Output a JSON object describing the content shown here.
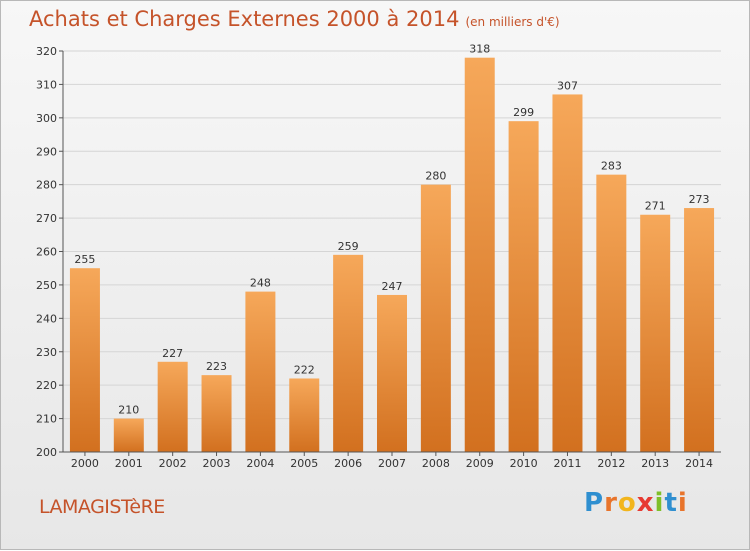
{
  "title": "Achats et Charges Externes 2000 à 2014",
  "subtitle": "(en milliers d'€)",
  "town": "LAMAGISTèRE",
  "brand": {
    "letters": [
      "P",
      "r",
      "o",
      "x",
      "i",
      "t",
      "i"
    ],
    "colors": [
      "#2f8fd0",
      "#e8742b",
      "#f2b51d",
      "#e73a32",
      "#7fbf2a",
      "#2f8fd0",
      "#e8742b"
    ]
  },
  "colors": {
    "title": "#c5532a",
    "bar_top": "#f6a85a",
    "bar_bottom": "#d2701f",
    "grid": "#d5d5d5"
  },
  "chart_data": {
    "type": "bar",
    "title": "Achats et Charges Externes 2000 à 2014",
    "subtitle": "(en milliers d'€)",
    "xlabel": "",
    "ylabel": "",
    "ylim": [
      200,
      320
    ],
    "yticks": [
      200,
      210,
      220,
      230,
      240,
      250,
      260,
      270,
      280,
      290,
      300,
      310,
      320
    ],
    "grid": true,
    "categories": [
      "2000",
      "2001",
      "2002",
      "2003",
      "2004",
      "2005",
      "2006",
      "2007",
      "2008",
      "2009",
      "2010",
      "2011",
      "2012",
      "2013",
      "2014"
    ],
    "values": [
      255,
      210,
      227,
      223,
      248,
      222,
      259,
      247,
      280,
      318,
      299,
      307,
      283,
      271,
      273
    ]
  }
}
